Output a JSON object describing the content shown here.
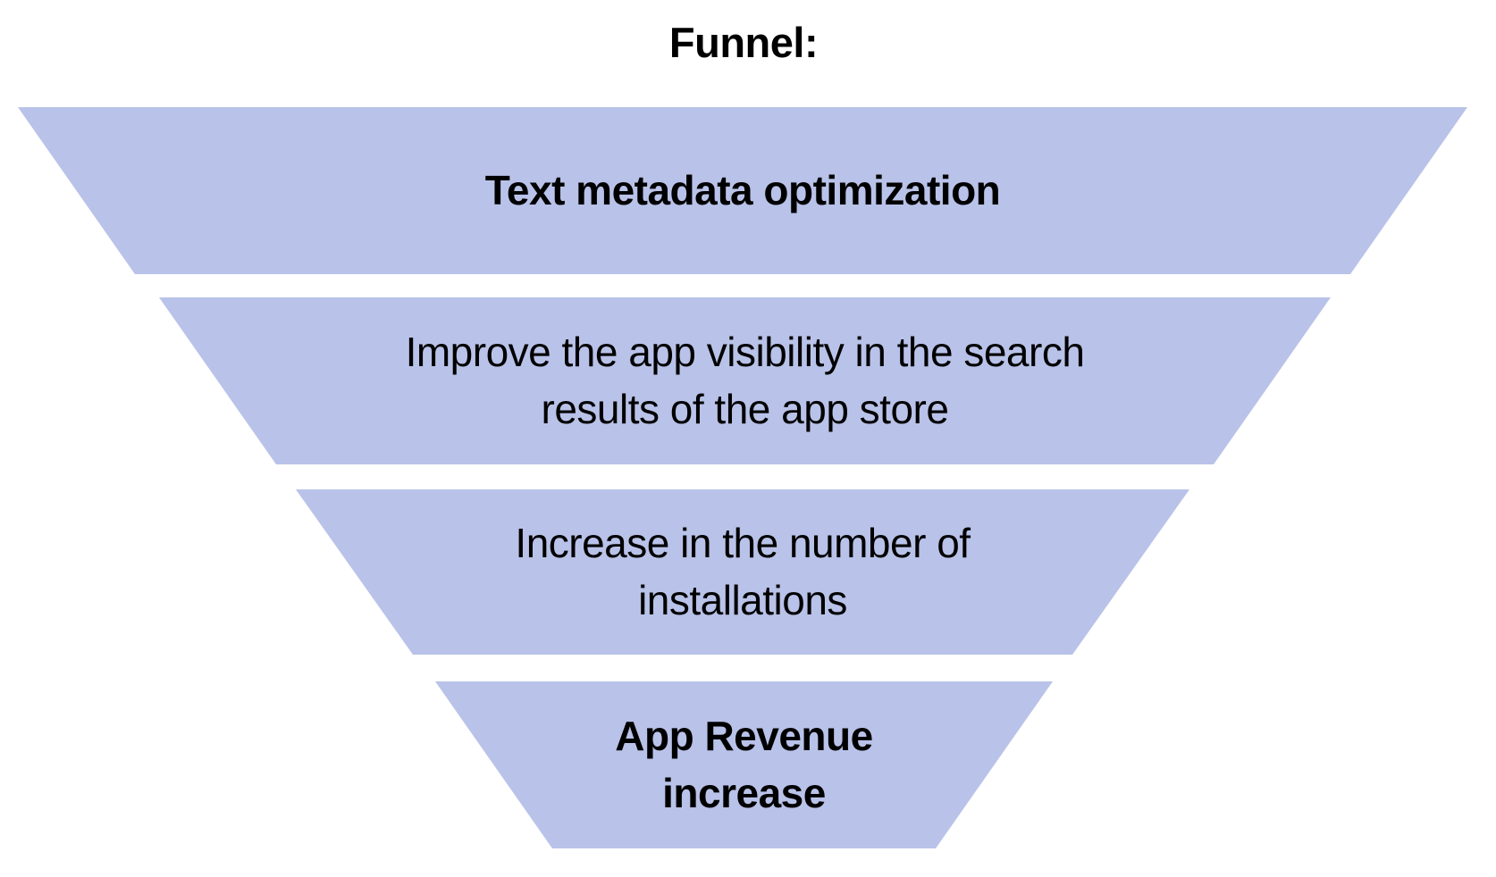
{
  "title": "Funnel:",
  "colors": {
    "background": "#ffffff",
    "funnel_fill": "#b9c2e8",
    "text": "#000000"
  },
  "funnel": {
    "levels": [
      {
        "label": "Text metadata optimization",
        "style": "bold"
      },
      {
        "label": "Improve the app visibility in the search\nresults of the app store",
        "style": "regular"
      },
      {
        "label": "Increase in the number of\ninstallations",
        "style": "regular"
      },
      {
        "label": "App Revenue\nincrease",
        "style": "bold"
      }
    ]
  }
}
